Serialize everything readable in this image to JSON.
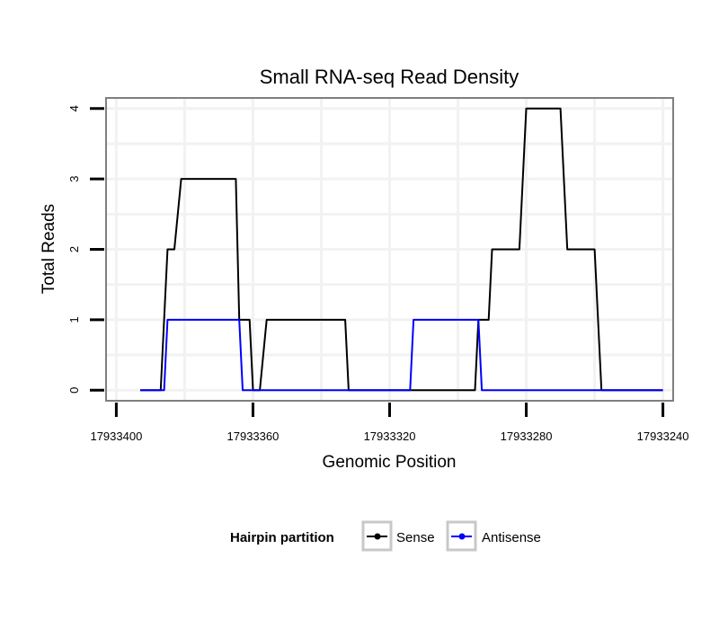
{
  "chart_data": {
    "type": "line",
    "title": "Small RNA-seq Read Density",
    "xlabel": "Genomic Position",
    "ylabel": "Total Reads",
    "x_reversed": true,
    "xlim": [
      17933403,
      17933237
    ],
    "ylim": [
      -0.15,
      4.15
    ],
    "xticks": [
      17933400,
      17933360,
      17933320,
      17933280,
      17933240
    ],
    "xtick_labels": [
      "17933400",
      "17933360",
      "17933320",
      "17933280",
      "17933240"
    ],
    "yticks": [
      0,
      1,
      2,
      3,
      4
    ],
    "ytick_labels": [
      "0",
      "1",
      "2",
      "3",
      "4"
    ],
    "grid": true,
    "legend": {
      "title": "Hairpin partition",
      "position": "bottom",
      "entries": [
        "Sense",
        "Antisense"
      ]
    },
    "series": [
      {
        "name": "Sense",
        "color": "#000000",
        "x": [
          17933393,
          17933387,
          17933385,
          17933384,
          17933383,
          17933381,
          17933365,
          17933364,
          17933361,
          17933360,
          17933358,
          17933356,
          17933333,
          17933332,
          17933295,
          17933294,
          17933291,
          17933290,
          17933282,
          17933280,
          17933270,
          17933268,
          17933260,
          17933258,
          17933247,
          17933246,
          17933240
        ],
        "y": [
          0,
          0,
          2,
          2,
          2,
          3,
          3,
          1,
          1,
          0,
          0,
          1,
          1,
          0,
          0,
          1,
          1,
          2,
          2,
          4,
          4,
          2,
          2,
          0,
          0,
          0,
          0
        ]
      },
      {
        "name": "Antisense",
        "color": "#0000ff",
        "x": [
          17933393,
          17933386,
          17933385,
          17933364,
          17933363,
          17933340,
          17933314,
          17933313,
          17933294,
          17933293,
          17933240
        ],
        "y": [
          0,
          0,
          1,
          1,
          0,
          0,
          0,
          1,
          1,
          0,
          0
        ]
      }
    ]
  }
}
